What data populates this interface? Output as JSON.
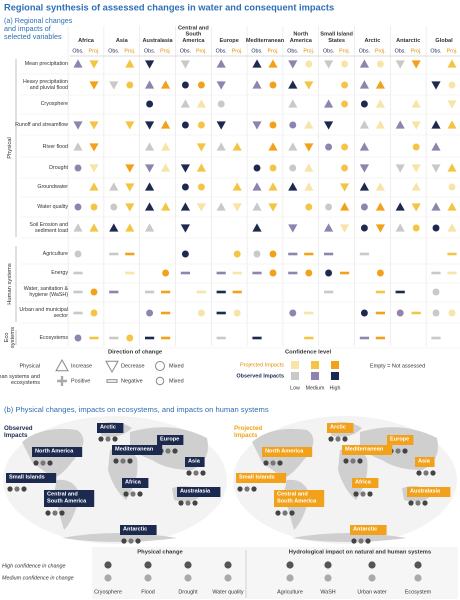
{
  "title": "Regional synthesis of assessed changes in water and consequent impacts",
  "panel_a": {
    "label": "(a) Regional changes and impacts of selected variables",
    "regions": [
      "Africa",
      "Asia",
      "Australasia",
      "Central and South America",
      "Europe",
      "Mediterranean",
      "North America",
      "Small Island States",
      "Arctic",
      "Antarctic",
      "Global"
    ],
    "obs": "Obs.",
    "proj": "Proj.",
    "groups": [
      {
        "name": "Physical",
        "rows": [
          "Mean precipitation",
          "Heavy precipitation and pluvial flood",
          "Cryosphere",
          "Runoff and streamflow",
          "River flood",
          "Drought",
          "Groundwater",
          "Water quality",
          "Soil Erosion and sediment load"
        ]
      },
      {
        "name": "Human systems",
        "rows": [
          "Agriculture",
          "Energy",
          "Water, sanitation & hygiene (WaSH)",
          "Urban and municipal sector"
        ]
      },
      {
        "name": "Eco systems",
        "rows": [
          "Ecosystems"
        ]
      }
    ]
  },
  "legend": {
    "direction_title": "Direction of change",
    "physical_row": {
      "label": "Physical",
      "items": [
        "Increase",
        "Decrease",
        "Mixed"
      ]
    },
    "human_row": {
      "label": "Human systems and ecosystems",
      "items": [
        "Positive",
        "Negative",
        "Mixed"
      ]
    },
    "confidence_title": "Confidence level",
    "projected": "Projected Impacts",
    "observed": "Observed Impacts",
    "levels": [
      "Low",
      "Medium",
      "High"
    ],
    "empty": "Empty = Not assessed"
  },
  "panel_b": {
    "label": "(b) Physical changes, impacts on ecosystems, and impacts on human systems",
    "observed_title": "Observed Impacts",
    "projected_title": "Projected Impacts",
    "map_regions": [
      "Arctic",
      "Europe",
      "North America",
      "Mediterranean",
      "Asia",
      "Small Islands",
      "Africa",
      "Central and South America",
      "Australasia",
      "Antarctic"
    ],
    "high_confidence": "High confidence in change",
    "medium_confidence": "Medium confidence in change",
    "physical_change": {
      "title": "Physical change",
      "items": [
        "Cryosphere",
        "Flood",
        "Drought",
        "Water quality"
      ]
    },
    "hydrological_impact": {
      "title": "Hydrological impact on natural and human systems",
      "items": [
        "Agriculture",
        "WaSH",
        "Urban water",
        "Ecosystem"
      ]
    }
  }
}
